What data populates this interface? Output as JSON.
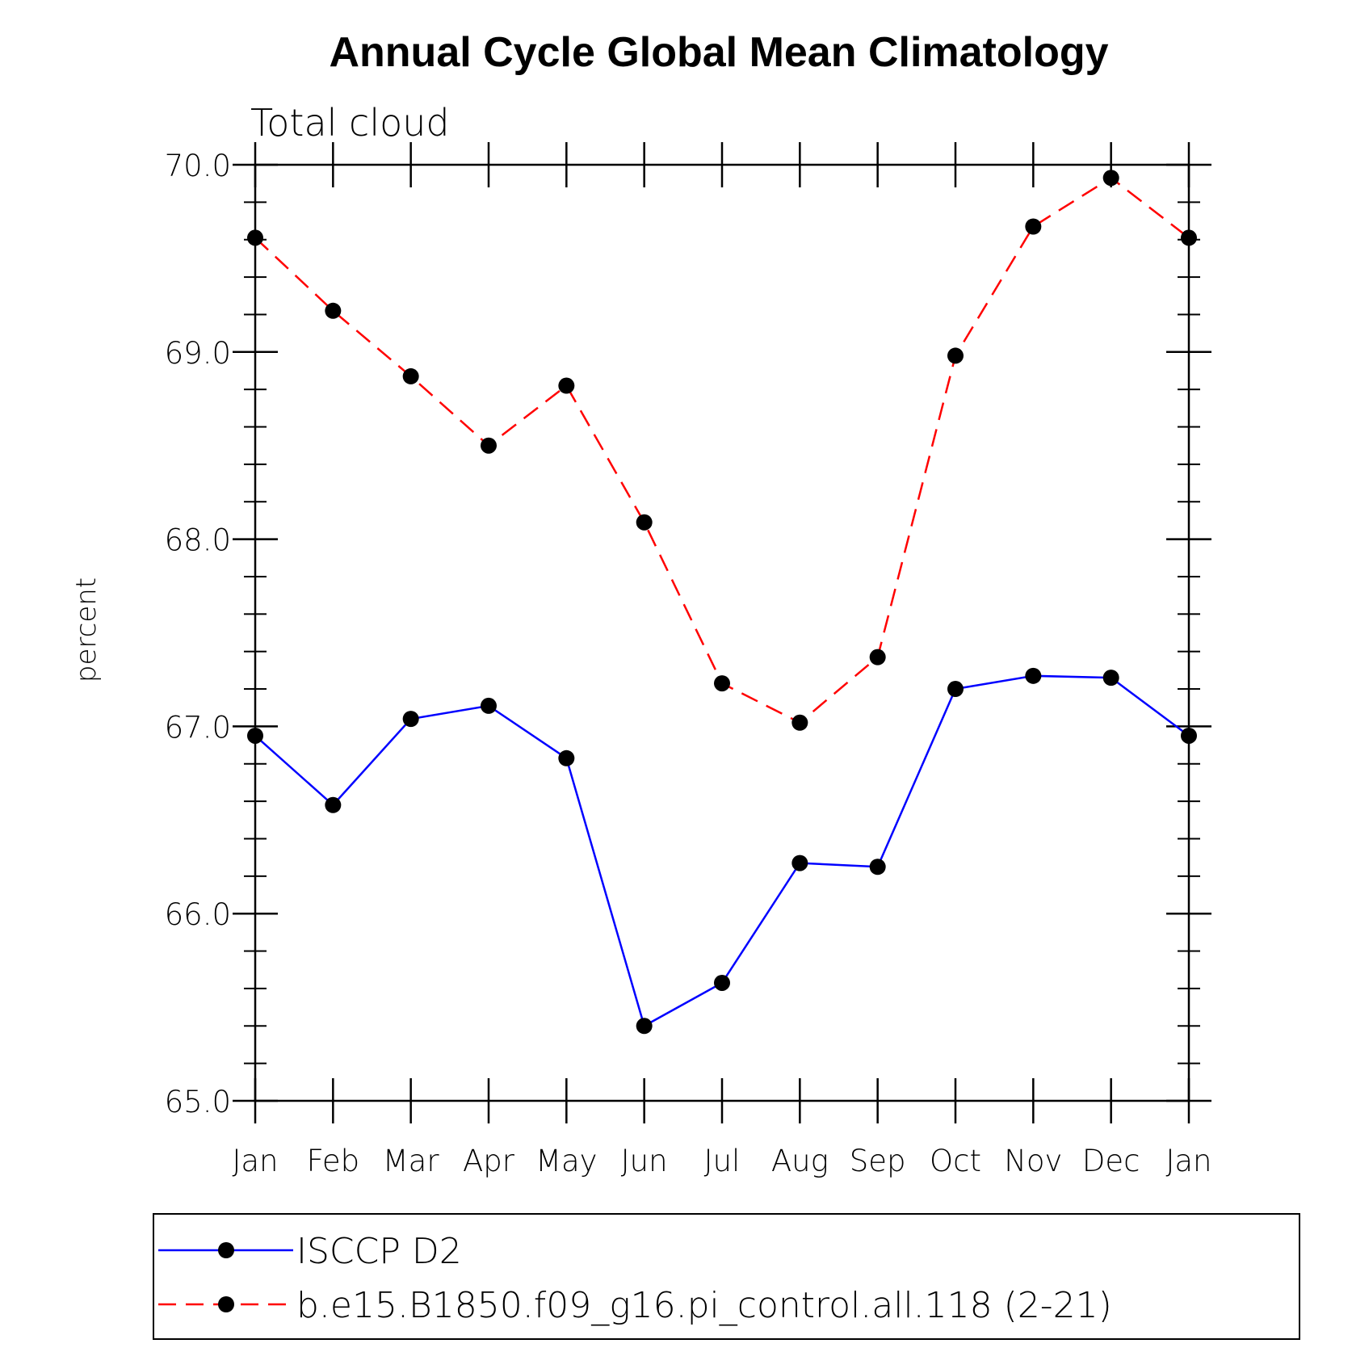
{
  "chart_data": {
    "type": "line",
    "title": "Annual Cycle Global Mean Climatology",
    "subtitle": "Total cloud",
    "xlabel": "",
    "ylabel": "percent",
    "categories": [
      "Jan",
      "Feb",
      "Mar",
      "Apr",
      "May",
      "Jun",
      "Jul",
      "Aug",
      "Sep",
      "Oct",
      "Nov",
      "Dec",
      "Jan"
    ],
    "ylim": [
      65.0,
      70.0
    ],
    "yticks": [
      65.0,
      66.0,
      67.0,
      68.0,
      69.0,
      70.0
    ],
    "ytick_labels": [
      "65.0",
      "66.0",
      "67.0",
      "68.0",
      "69.0",
      "70.0"
    ],
    "yminor_step": 0.2,
    "grid": false,
    "legend_position": "bottom",
    "series": [
      {
        "name": "ISCCP D2",
        "color": "#0000ff",
        "line_style": "solid",
        "marker": "filled-circle",
        "values": [
          66.95,
          66.58,
          67.04,
          67.11,
          66.83,
          65.4,
          65.63,
          66.27,
          66.25,
          67.2,
          67.27,
          67.26,
          66.95
        ]
      },
      {
        "name": "b.e15.B1850.f09_g16.pi_control.all.118 (2-21)",
        "color": "#ff0000",
        "line_style": "dashed",
        "marker": "filled-circle",
        "values": [
          69.61,
          69.22,
          68.87,
          68.5,
          68.82,
          68.09,
          67.23,
          67.02,
          67.37,
          68.98,
          69.67,
          69.93,
          69.61
        ]
      }
    ]
  }
}
